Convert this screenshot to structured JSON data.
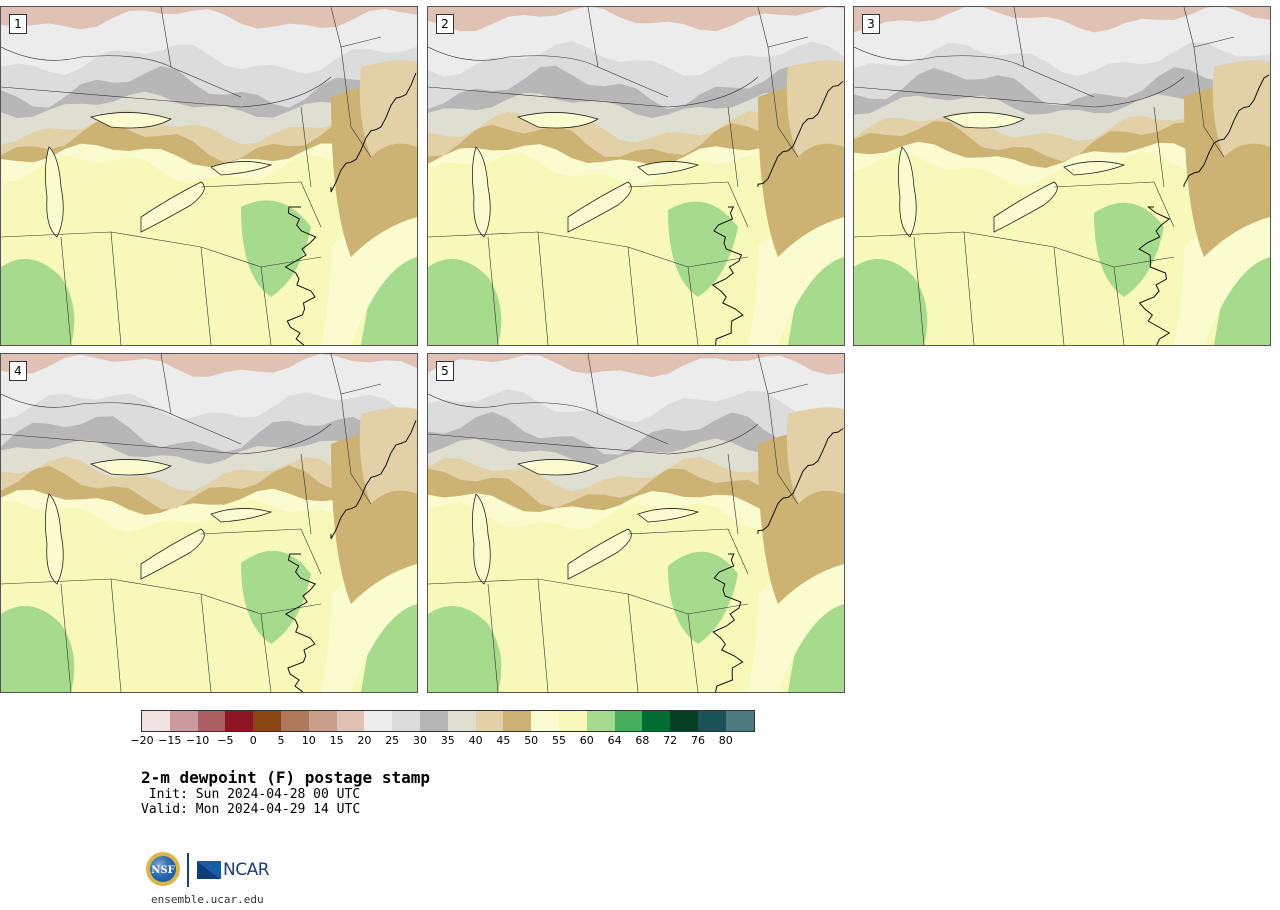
{
  "panels": [
    {
      "label": "1"
    },
    {
      "label": "2"
    },
    {
      "label": "3"
    },
    {
      "label": "4"
    },
    {
      "label": "5"
    }
  ],
  "colorbar": {
    "colors": [
      "#f2e3e3",
      "#cc9a9f",
      "#ad5e63",
      "#8e1522",
      "#8b4512",
      "#b0785a",
      "#c99f8b",
      "#e0c2b5",
      "#ececec",
      "#dcdcdc",
      "#b7b7b7",
      "#dfdfd1",
      "#e2d1a7",
      "#ccb273",
      "#fafcd0",
      "#f6f9b7",
      "#a6da8c",
      "#45ad5b",
      "#016d33",
      "#033d22",
      "#1b5257",
      "#4c7a7e"
    ],
    "tick_labels": [
      "−20",
      "−15",
      "−10",
      "−5",
      "0",
      "5",
      "10",
      "15",
      "20",
      "25",
      "30",
      "35",
      "40",
      "45",
      "50",
      "55",
      "60",
      "64",
      "68",
      "72",
      "76",
      "80"
    ]
  },
  "title": "2-m dewpoint (F) postage stamp",
  "init": " Init: Sun 2024-04-28 00 UTC",
  "valid": "Valid: Mon 2024-04-29 14 UTC",
  "logos": {
    "nsf": "NSF",
    "ncar": "NCAR"
  },
  "website": "ensemble.ucar.edu"
}
